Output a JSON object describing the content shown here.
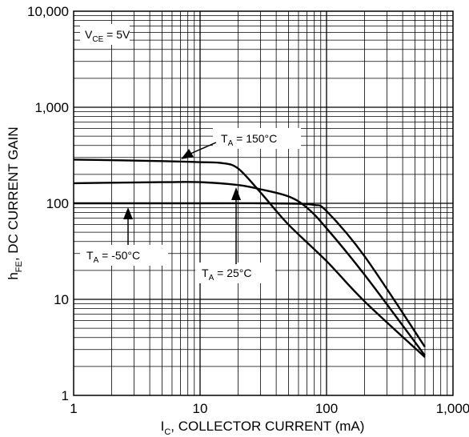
{
  "chart_data": {
    "type": "line",
    "xlabel": "I_C, COLLECTOR CURRENT (mA)",
    "xlabel_main": "I",
    "xlabel_sub": "C",
    "xlabel_rest": ", COLLECTOR CURRENT (mA)",
    "ylabel_main": "h",
    "ylabel_sub": "FE",
    "ylabel_rest": ", DC CURRENT GAIN",
    "xscale": "log",
    "yscale": "log",
    "xlim": [
      1,
      1000
    ],
    "ylim": [
      1,
      10000
    ],
    "x_ticks": [
      "1",
      "10",
      "100",
      "1,000"
    ],
    "y_ticks": [
      "1",
      "10",
      "100",
      "1,000",
      "10,000"
    ],
    "grid": true,
    "condition_main": "V",
    "condition_sub": "CE",
    "condition_rest": " = 5V",
    "series": [
      {
        "label_main": "T",
        "label_sub": "A",
        "label_rest": " = 150°C",
        "points": [
          [
            1,
            285
          ],
          [
            5,
            275
          ],
          [
            10,
            268
          ],
          [
            15,
            262
          ],
          [
            20,
            230
          ],
          [
            30,
            130
          ],
          [
            50,
            60
          ],
          [
            100,
            25
          ],
          [
            200,
            9.5
          ],
          [
            600,
            2.5
          ]
        ]
      },
      {
        "label_main": "T",
        "label_sub": "A",
        "label_rest": " = 25°C",
        "points": [
          [
            1,
            162
          ],
          [
            5,
            166
          ],
          [
            10,
            166
          ],
          [
            20,
            155
          ],
          [
            30,
            140
          ],
          [
            50,
            118
          ],
          [
            70,
            90
          ],
          [
            100,
            55
          ],
          [
            200,
            18
          ],
          [
            600,
            2.6
          ]
        ]
      },
      {
        "label_main": "T",
        "label_sub": "A",
        "label_rest": " = -50°C",
        "points": [
          [
            1,
            100
          ],
          [
            10,
            100
          ],
          [
            30,
            100
          ],
          [
            60,
            99
          ],
          [
            80,
            96
          ],
          [
            100,
            83
          ],
          [
            200,
            28
          ],
          [
            600,
            3.2
          ]
        ]
      }
    ]
  }
}
